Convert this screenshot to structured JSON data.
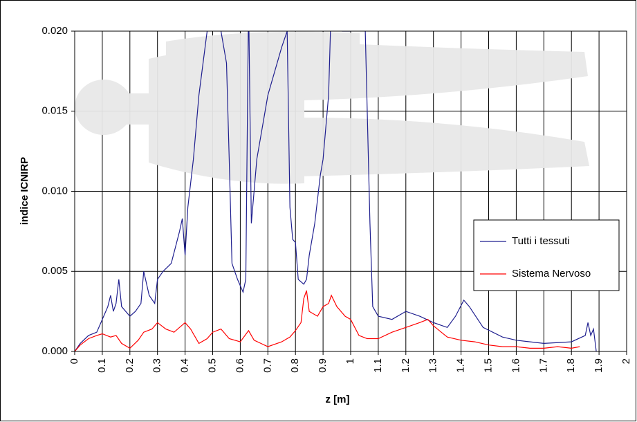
{
  "chart_data": {
    "type": "line",
    "x_label": "z [m]",
    "y_label": "indice ICNIRP",
    "xlim": [
      0,
      2
    ],
    "xticks": [
      0,
      0.1,
      0.2,
      0.3,
      0.4,
      0.5,
      0.6,
      0.7,
      0.8,
      0.9,
      1,
      1.1,
      1.2,
      1.3,
      1.4,
      1.5,
      1.6,
      1.7,
      1.8,
      1.9,
      2
    ],
    "ylim": [
      0,
      0.02
    ],
    "yticks": [
      {
        "value": 0,
        "label": "0.000"
      },
      {
        "value": 0.005,
        "label": "0.005"
      },
      {
        "value": 0.01,
        "label": "0.010"
      },
      {
        "value": 0.015,
        "label": "0.015"
      },
      {
        "value": 0.02,
        "label": "0.020"
      }
    ],
    "grid": true,
    "legend": "right",
    "series": [
      {
        "name": "Tutti i tessuti",
        "color": "#1f1f8f",
        "x": [
          0,
          0.02,
          0.05,
          0.08,
          0.1,
          0.12,
          0.13,
          0.14,
          0.15,
          0.16,
          0.17,
          0.2,
          0.22,
          0.24,
          0.25,
          0.27,
          0.29,
          0.3,
          0.32,
          0.35,
          0.38,
          0.39,
          0.4,
          0.41,
          0.43,
          0.45,
          0.48,
          0.5,
          0.53,
          0.55,
          0.56,
          0.57,
          0.59,
          0.61,
          0.62,
          0.63,
          0.64,
          0.66,
          0.7,
          0.75,
          0.77,
          0.78,
          0.79,
          0.8,
          0.81,
          0.83,
          0.84,
          0.85,
          0.87,
          0.89,
          0.9,
          0.92,
          0.93,
          0.95,
          0.97,
          1.0,
          1.02,
          1.05,
          1.07,
          1.08,
          1.1,
          1.15,
          1.2,
          1.25,
          1.3,
          1.35,
          1.38,
          1.41,
          1.43,
          1.48,
          1.55,
          1.6,
          1.7,
          1.8,
          1.85,
          1.86,
          1.87,
          1.88,
          1.89
        ],
        "values": [
          0,
          0.0005,
          0.001,
          0.0012,
          0.002,
          0.0028,
          0.0035,
          0.0025,
          0.003,
          0.0045,
          0.0028,
          0.0022,
          0.0025,
          0.003,
          0.005,
          0.0035,
          0.003,
          0.0045,
          0.005,
          0.0055,
          0.0075,
          0.0083,
          0.006,
          0.009,
          0.012,
          0.016,
          0.02,
          0.022,
          0.02,
          0.018,
          0.012,
          0.0055,
          0.0045,
          0.0037,
          0.0045,
          0.022,
          0.008,
          0.012,
          0.016,
          0.019,
          0.02,
          0.009,
          0.007,
          0.0068,
          0.0045,
          0.0042,
          0.0045,
          0.006,
          0.008,
          0.011,
          0.012,
          0.016,
          0.022,
          0.022,
          0.02,
          0.02,
          0.022,
          0.022,
          0.008,
          0.0028,
          0.0022,
          0.002,
          0.0025,
          0.0022,
          0.0018,
          0.0015,
          0.0022,
          0.0032,
          0.0028,
          0.0015,
          0.0009,
          0.0007,
          0.0005,
          0.0006,
          0.001,
          0.0018,
          0.001,
          0.0014,
          0
        ]
      },
      {
        "name": "Sistema Nervoso",
        "color": "#ff0000",
        "x": [
          0,
          0.02,
          0.05,
          0.08,
          0.1,
          0.13,
          0.15,
          0.17,
          0.2,
          0.23,
          0.25,
          0.28,
          0.3,
          0.33,
          0.36,
          0.4,
          0.42,
          0.45,
          0.48,
          0.5,
          0.53,
          0.56,
          0.6,
          0.63,
          0.65,
          0.7,
          0.75,
          0.78,
          0.8,
          0.82,
          0.83,
          0.84,
          0.85,
          0.88,
          0.9,
          0.92,
          0.93,
          0.95,
          0.98,
          1.0,
          1.03,
          1.06,
          1.1,
          1.15,
          1.2,
          1.25,
          1.28,
          1.3,
          1.35,
          1.4,
          1.45,
          1.5,
          1.55,
          1.6,
          1.65,
          1.7,
          1.75,
          1.8,
          1.83
        ],
        "values": [
          0,
          0.0004,
          0.0008,
          0.001,
          0.0011,
          0.0009,
          0.001,
          0.0005,
          0.0002,
          0.0007,
          0.0012,
          0.0014,
          0.0018,
          0.0014,
          0.0012,
          0.0018,
          0.0014,
          0.0005,
          0.0008,
          0.0012,
          0.0014,
          0.0008,
          0.0006,
          0.0013,
          0.0007,
          0.0003,
          0.0006,
          0.0009,
          0.0013,
          0.0018,
          0.0033,
          0.0038,
          0.0025,
          0.0022,
          0.0028,
          0.003,
          0.0035,
          0.0028,
          0.0022,
          0.002,
          0.001,
          0.0008,
          0.0008,
          0.0012,
          0.0015,
          0.0018,
          0.002,
          0.0016,
          0.0009,
          0.0007,
          0.0006,
          0.0004,
          0.0003,
          0.0003,
          0.0002,
          0.0002,
          0.0003,
          0.0002,
          0.0003
        ]
      }
    ]
  }
}
